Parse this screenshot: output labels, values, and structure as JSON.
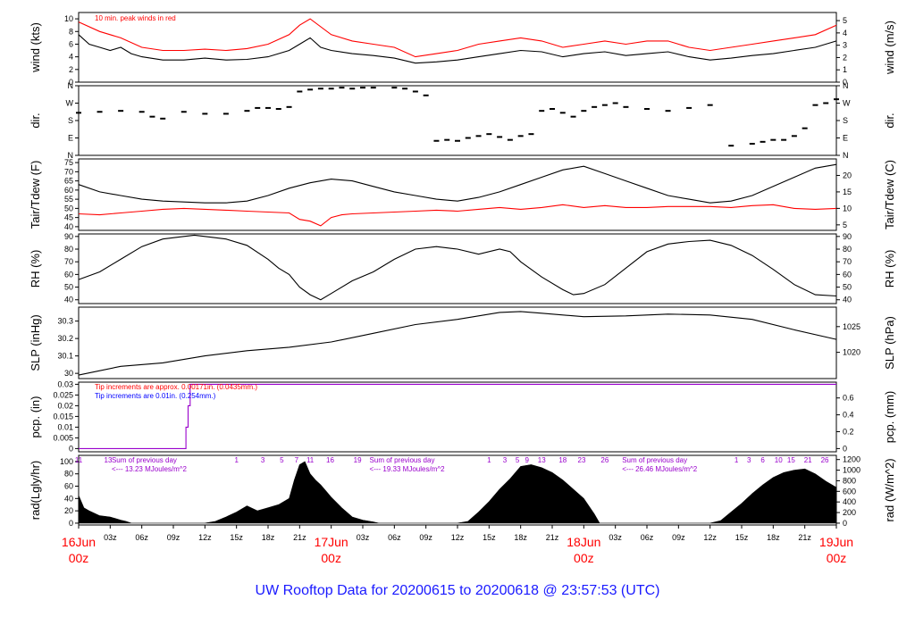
{
  "title": "UW Rooftop Data for 20200615  to  20200618 @ 23:57:53  (UTC)",
  "colors": {
    "black": "#000000",
    "red": "#ff0000",
    "blue": "#0000ff",
    "purple": "#9900cc",
    "title": "#1a1aff"
  },
  "x_axis": {
    "range_hours": [
      0,
      72
    ],
    "tick_labels": [
      {
        "h": 0,
        "label": "16Jun",
        "sub": "00z",
        "major": true
      },
      {
        "h": 3,
        "label": "03z"
      },
      {
        "h": 6,
        "label": "06z"
      },
      {
        "h": 9,
        "label": "09z"
      },
      {
        "h": 12,
        "label": "12z"
      },
      {
        "h": 15,
        "label": "15z"
      },
      {
        "h": 18,
        "label": "18z"
      },
      {
        "h": 21,
        "label": "21z"
      },
      {
        "h": 24,
        "label": "17Jun",
        "sub": "00z",
        "major": true
      },
      {
        "h": 27,
        "label": "03z"
      },
      {
        "h": 30,
        "label": "06z"
      },
      {
        "h": 33,
        "label": "09z"
      },
      {
        "h": 36,
        "label": "12z"
      },
      {
        "h": 39,
        "label": "15z"
      },
      {
        "h": 42,
        "label": "18z"
      },
      {
        "h": 45,
        "label": "21z"
      },
      {
        "h": 48,
        "label": "18Jun",
        "sub": "00z",
        "major": true
      },
      {
        "h": 51,
        "label": "03z"
      },
      {
        "h": 54,
        "label": "06z"
      },
      {
        "h": 57,
        "label": "09z"
      },
      {
        "h": 60,
        "label": "12z"
      },
      {
        "h": 63,
        "label": "15z"
      },
      {
        "h": 66,
        "label": "18z"
      },
      {
        "h": 69,
        "label": "21z"
      },
      {
        "h": 72,
        "label": "19Jun",
        "sub": "00z",
        "major": true
      }
    ]
  },
  "chart_data": [
    {
      "type": "line",
      "id": "wind",
      "ylabel_left": "wind (kts)",
      "ylabel_right": "wind (m/s)",
      "ylim": [
        0,
        11
      ],
      "yticks_left": [
        0,
        2,
        4,
        6,
        8,
        10
      ],
      "yticks_right": [
        0,
        1,
        2,
        3,
        4,
        5
      ],
      "annotations": [
        {
          "text": "10 min. peak winds in red",
          "color": "#ff0000"
        }
      ],
      "series": [
        {
          "color": "#000000",
          "x": [
            0,
            1,
            2,
            3,
            4,
            5,
            6,
            8,
            10,
            12,
            14,
            16,
            18,
            20,
            21,
            22,
            23,
            24,
            26,
            28,
            30,
            32,
            34,
            36,
            38,
            40,
            42,
            44,
            46,
            48,
            50,
            52,
            54,
            56,
            58,
            60,
            62,
            64,
            66,
            68,
            70,
            72
          ],
          "values": [
            7.5,
            6,
            5.5,
            5,
            5.5,
            4.5,
            4,
            3.5,
            3.5,
            3.8,
            3.5,
            3.6,
            4,
            5,
            6,
            7,
            5.5,
            5,
            4.5,
            4.2,
            3.8,
            3,
            3.2,
            3.5,
            4,
            4.5,
            5,
            4.8,
            4,
            4.5,
            4.8,
            4.2,
            4.5,
            4.8,
            4,
            3.5,
            3.8,
            4.2,
            4.5,
            5,
            5.5,
            6.5
          ]
        },
        {
          "color": "#ff0000",
          "x": [
            0,
            2,
            4,
            6,
            8,
            10,
            12,
            14,
            16,
            18,
            20,
            21,
            22,
            24,
            26,
            28,
            30,
            32,
            34,
            36,
            38,
            40,
            42,
            44,
            46,
            48,
            50,
            52,
            54,
            56,
            58,
            60,
            62,
            64,
            66,
            68,
            70,
            72
          ],
          "values": [
            9.5,
            8,
            7,
            5.5,
            5,
            5,
            5.2,
            5,
            5.3,
            6,
            7.5,
            9,
            10,
            7.5,
            6.5,
            6,
            5.5,
            4,
            4.5,
            5,
            6,
            6.5,
            7,
            6.5,
            5.5,
            6,
            6.5,
            6,
            6.5,
            6.5,
            5.5,
            5,
            5.5,
            6,
            6.5,
            7,
            7.5,
            9
          ]
        }
      ]
    },
    {
      "type": "scatter",
      "id": "dir",
      "ylabel_left": "dir.",
      "ylabel_right": "dir.",
      "ylim": [
        0,
        360
      ],
      "ytick_labels": [
        "N",
        "E",
        "S",
        "W",
        "N"
      ],
      "ytick_values": [
        0,
        90,
        180,
        270,
        360
      ],
      "series": [
        {
          "color": "#000000",
          "x": [
            0,
            2,
            4,
            6,
            7,
            8,
            10,
            12,
            14,
            16,
            17,
            18,
            19,
            20,
            21,
            22,
            23,
            24,
            25,
            26,
            27,
            28,
            30,
            31,
            32,
            33,
            34,
            35,
            36,
            37,
            38,
            39,
            40,
            41,
            42,
            43,
            44,
            45,
            46,
            47,
            48,
            49,
            50,
            51,
            52,
            54,
            56,
            58,
            60,
            62,
            64,
            65,
            66,
            67,
            68,
            69,
            70,
            71,
            72
          ],
          "values": [
            220,
            225,
            230,
            225,
            200,
            190,
            225,
            215,
            215,
            230,
            245,
            245,
            240,
            250,
            330,
            340,
            345,
            345,
            350,
            345,
            350,
            350,
            350,
            345,
            330,
            310,
            75,
            80,
            75,
            90,
            100,
            110,
            95,
            80,
            100,
            110,
            230,
            240,
            220,
            200,
            230,
            250,
            260,
            270,
            250,
            240,
            230,
            245,
            260,
            50,
            60,
            70,
            80,
            80,
            100,
            140,
            260,
            270,
            290
          ]
        }
      ]
    },
    {
      "type": "line",
      "id": "temp",
      "ylabel_left": "Tair/Tdew (F)",
      "ylabel_right": "Tair/Tdew (C)",
      "ylim": [
        38,
        77
      ],
      "yticks_left": [
        40,
        45,
        50,
        55,
        60,
        65,
        70,
        75
      ],
      "yticks_right": [
        5,
        10,
        15,
        20
      ],
      "series": [
        {
          "color": "#000000",
          "x": [
            0,
            2,
            4,
            6,
            8,
            10,
            12,
            14,
            16,
            18,
            20,
            22,
            24,
            26,
            28,
            30,
            32,
            34,
            36,
            38,
            40,
            42,
            44,
            46,
            48,
            50,
            52,
            54,
            56,
            58,
            60,
            62,
            64,
            66,
            68,
            70,
            72
          ],
          "values": [
            63,
            59,
            57,
            55,
            54,
            53.5,
            53,
            53,
            54,
            57,
            61,
            64,
            66,
            65,
            62,
            59,
            57,
            55,
            54,
            56,
            59,
            63,
            67,
            71,
            73,
            69,
            65,
            61,
            57,
            55,
            53,
            54,
            57,
            62,
            67,
            72,
            74
          ]
        },
        {
          "color": "#ff0000",
          "x": [
            0,
            2,
            4,
            6,
            8,
            10,
            12,
            14,
            16,
            18,
            20,
            21,
            22,
            23,
            24,
            25,
            26,
            28,
            30,
            32,
            34,
            36,
            38,
            40,
            42,
            44,
            46,
            48,
            50,
            52,
            54,
            56,
            58,
            60,
            62,
            64,
            66,
            68,
            70,
            72
          ],
          "values": [
            47,
            46.5,
            47.5,
            48.5,
            49.5,
            50,
            49.5,
            49,
            48.5,
            48,
            47.5,
            44,
            43,
            40.5,
            45,
            46.5,
            47,
            47.5,
            48,
            48.5,
            49,
            48.5,
            49.5,
            50.5,
            49.5,
            50.5,
            52,
            50.5,
            51.5,
            50.5,
            50.5,
            51,
            51,
            51,
            50.5,
            51.5,
            52,
            50,
            49.5,
            50
          ]
        }
      ]
    },
    {
      "type": "line",
      "id": "rh",
      "ylabel_left": "RH (%)",
      "ylabel_right": "RH (%)",
      "ylim": [
        37,
        92
      ],
      "yticks_left": [
        40,
        50,
        60,
        70,
        80,
        90
      ],
      "yticks_right": [
        40,
        50,
        60,
        70,
        80,
        90
      ],
      "series": [
        {
          "color": "#000000",
          "x": [
            0,
            2,
            4,
            6,
            8,
            10,
            11,
            12,
            14,
            16,
            18,
            19,
            20,
            21,
            22,
            23,
            24,
            26,
            28,
            30,
            32,
            34,
            36,
            38,
            40,
            41,
            42,
            44,
            46,
            47,
            48,
            50,
            52,
            54,
            56,
            58,
            60,
            62,
            64,
            66,
            68,
            70,
            72
          ],
          "values": [
            56,
            62,
            72,
            82,
            88,
            90,
            91,
            90,
            88,
            83,
            72,
            65,
            60,
            50,
            44,
            40,
            45,
            55,
            62,
            72,
            80,
            82,
            80,
            76,
            80,
            78,
            70,
            58,
            48,
            44,
            45,
            52,
            65,
            78,
            84,
            86,
            87,
            83,
            75,
            64,
            52,
            44,
            43
          ]
        }
      ]
    },
    {
      "type": "line",
      "id": "slp",
      "ylabel_left": "SLP (inHg)",
      "ylabel_right": "SLP (hPa)",
      "ylim": [
        29.97,
        30.38
      ],
      "yticks_left": [
        30.0,
        30.1,
        30.2,
        30.3
      ],
      "yticks_right": [
        1020,
        1025
      ],
      "series": [
        {
          "color": "#000000",
          "x": [
            0,
            4,
            8,
            12,
            16,
            20,
            24,
            28,
            32,
            36,
            40,
            42,
            44,
            48,
            52,
            56,
            60,
            64,
            68,
            72
          ],
          "values": [
            29.99,
            30.04,
            30.06,
            30.1,
            30.13,
            30.15,
            30.18,
            30.23,
            30.28,
            30.31,
            30.35,
            30.355,
            30.345,
            30.325,
            30.33,
            30.34,
            30.335,
            30.31,
            30.25,
            30.195
          ]
        }
      ]
    },
    {
      "type": "line",
      "id": "pcp",
      "ylabel_left": "pcp. (in)",
      "ylabel_right": "pcp. (mm)",
      "ylim": [
        -0.0015,
        0.031
      ],
      "yticks_left": [
        0,
        0.005,
        0.01,
        0.015,
        0.02,
        0.025,
        0.03
      ],
      "yticks_right": [
        0,
        0.2,
        0.4,
        0.6
      ],
      "annotations": [
        {
          "text": "Tip increments are approx. 0.00171in. (0.0435mm.)",
          "color": "#ff0000"
        },
        {
          "text": "Tip increments are 0.01in. (0.254mm.)",
          "color": "#0000ff"
        }
      ],
      "series": [
        {
          "color": "#9900cc",
          "x": [
            0,
            10.2,
            10.2,
            10.4,
            10.4,
            10.6,
            10.6,
            72
          ],
          "values": [
            0,
            0,
            0.01,
            0.01,
            0.02,
            0.02,
            0.03,
            0.03
          ]
        }
      ]
    },
    {
      "type": "area",
      "id": "rad",
      "ylabel_left": "rad(Lgly/hr)",
      "ylabel_right": "rad (W/m^2)",
      "ylim": [
        -3,
        110
      ],
      "yticks_left": [
        0,
        20,
        40,
        60,
        80,
        100
      ],
      "yticks_right": [
        0,
        200,
        400,
        600,
        800,
        1000,
        1200
      ],
      "hour_labels": [
        {
          "h": 0,
          "label": "11"
        },
        {
          "h": 2.8,
          "label": "13"
        },
        {
          "h": 15,
          "label": "1"
        },
        {
          "h": 17.5,
          "label": "3"
        },
        {
          "h": 19.3,
          "label": "5"
        },
        {
          "h": 20.7,
          "label": "7"
        },
        {
          "h": 22,
          "label": "11"
        },
        {
          "h": 23.9,
          "label": "16"
        },
        {
          "h": 26.5,
          "label": "19"
        },
        {
          "h": 39,
          "label": "1"
        },
        {
          "h": 40.5,
          "label": "3"
        },
        {
          "h": 41.7,
          "label": "5"
        },
        {
          "h": 42.6,
          "label": "9"
        },
        {
          "h": 44,
          "label": "13"
        },
        {
          "h": 46,
          "label": "18"
        },
        {
          "h": 47.8,
          "label": "23"
        },
        {
          "h": 50,
          "label": "26"
        },
        {
          "h": 62.5,
          "label": "1"
        },
        {
          "h": 63.7,
          "label": "3"
        },
        {
          "h": 65,
          "label": "6"
        },
        {
          "h": 66.5,
          "label": "10"
        },
        {
          "h": 67.7,
          "label": "15"
        },
        {
          "h": 69.3,
          "label": "21"
        },
        {
          "h": 70.9,
          "label": "26"
        }
      ],
      "annotations": [
        {
          "h": 2.8,
          "text": "Sum of previous day",
          "sub": "<--- 13.23 MJoules/m^2"
        },
        {
          "h": 27.3,
          "text": "Sum of previous day",
          "sub": "<--- 19.33 MJoules/m^2"
        },
        {
          "h": 51.3,
          "text": "Sum of previous day",
          "sub": "<--- 26.46 MJoules/m^2"
        }
      ],
      "series": [
        {
          "color": "#000000",
          "x": [
            0,
            0.5,
            1,
            2,
            3,
            4,
            4.5,
            5,
            12,
            13,
            14,
            15,
            16,
            17,
            18,
            19,
            20,
            20.5,
            21,
            21.5,
            22,
            22.5,
            23,
            23.5,
            24,
            25,
            26,
            27,
            28,
            28.5,
            36,
            37,
            38,
            39,
            40,
            41,
            42,
            43,
            44,
            45,
            46,
            47,
            48,
            49,
            49.5,
            60,
            61,
            62,
            63,
            64,
            65,
            66,
            67,
            68,
            69,
            70,
            71,
            72
          ],
          "values": [
            45,
            25,
            20,
            12,
            10,
            5,
            3,
            0,
            0,
            3,
            10,
            18,
            28,
            20,
            25,
            30,
            40,
            70,
            95,
            100,
            80,
            70,
            62,
            52,
            42,
            25,
            10,
            5,
            2,
            0,
            0,
            3,
            18,
            35,
            55,
            72,
            92,
            95,
            90,
            82,
            70,
            55,
            40,
            15,
            0,
            0,
            4,
            18,
            32,
            48,
            62,
            74,
            82,
            86,
            88,
            80,
            68,
            58
          ]
        }
      ]
    }
  ]
}
